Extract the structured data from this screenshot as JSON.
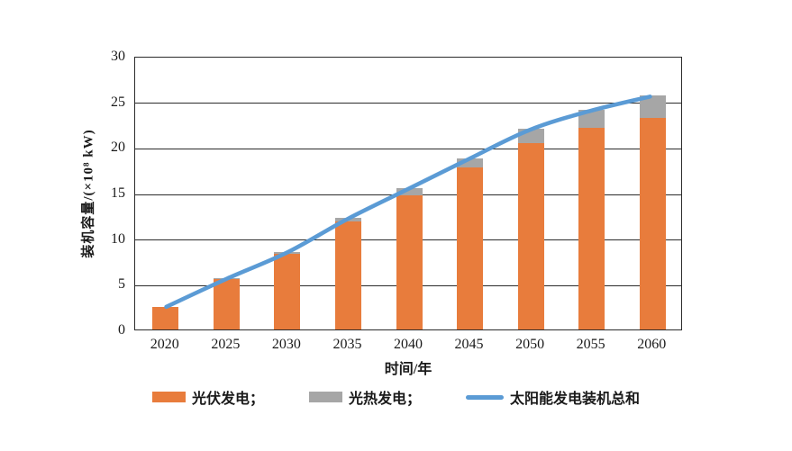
{
  "chart": {
    "y_title": "装机容量/(×10⁸ kW)",
    "x_title": "时间/年",
    "legend": [
      {
        "label": "光伏发电；",
        "type": "bar",
        "color": "#E87C3C"
      },
      {
        "label": "光热发电；",
        "type": "bar",
        "color": "#A6A6A6"
      },
      {
        "label": "太阳能发电装机总和",
        "type": "line",
        "color": "#5B9BD5"
      }
    ]
  },
  "chart_data": {
    "type": "bar+line",
    "title": "",
    "xlabel": "时间/年",
    "ylabel": "装机容量/(×10⁸ kW)",
    "categories": [
      "2020",
      "2025",
      "2030",
      "2035",
      "2040",
      "2045",
      "2050",
      "2055",
      "2060"
    ],
    "series": [
      {
        "name": "光伏发电",
        "type": "bar",
        "stack": true,
        "color": "#E87C3C",
        "values": [
          2.5,
          5.5,
          8.3,
          11.8,
          14.7,
          17.8,
          20.4,
          22.1,
          23.2
        ]
      },
      {
        "name": "光热发电",
        "type": "bar",
        "stack": true,
        "color": "#A6A6A6",
        "values": [
          0.0,
          0.1,
          0.2,
          0.4,
          0.8,
          1.0,
          1.6,
          2.0,
          2.5
        ]
      },
      {
        "name": "太阳能发电装机总和",
        "type": "line",
        "color": "#5B9BD5",
        "values": [
          2.5,
          5.6,
          8.5,
          12.2,
          15.5,
          18.8,
          22.0,
          24.1,
          25.7
        ]
      }
    ],
    "y_ticks": [
      0,
      5,
      10,
      15,
      20,
      25,
      30
    ],
    "ylim": [
      0,
      30
    ],
    "grid": "horizontal",
    "gridline_color": "#2b2b2b",
    "legend_position": "bottom"
  }
}
